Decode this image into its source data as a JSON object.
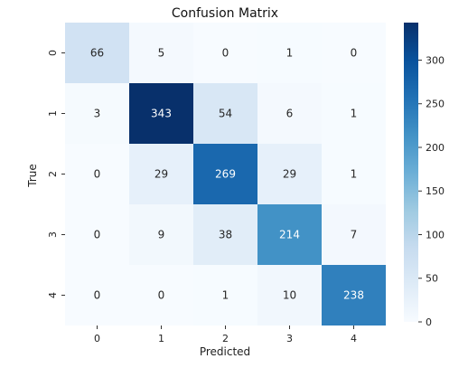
{
  "chart_data": {
    "type": "heatmap",
    "title": "Confusion Matrix",
    "xlabel": "Predicted",
    "ylabel": "True",
    "x_categories": [
      "0",
      "1",
      "2",
      "3",
      "4"
    ],
    "y_categories": [
      "0",
      "1",
      "2",
      "3",
      "4"
    ],
    "values": [
      [
        66,
        5,
        0,
        1,
        0
      ],
      [
        3,
        343,
        54,
        6,
        1
      ],
      [
        0,
        29,
        269,
        29,
        1
      ],
      [
        0,
        9,
        38,
        214,
        7
      ],
      [
        0,
        0,
        1,
        10,
        238
      ]
    ],
    "colormap": "Blues",
    "color_low": "#f7fbff",
    "color_high": "#08306b",
    "colorbar_range": [
      0,
      343
    ],
    "colorbar_ticks": [
      "0",
      "50",
      "100",
      "150",
      "200",
      "250",
      "300"
    ],
    "colorbar_tick_values": [
      0,
      50,
      100,
      150,
      200,
      250,
      300
    ]
  }
}
